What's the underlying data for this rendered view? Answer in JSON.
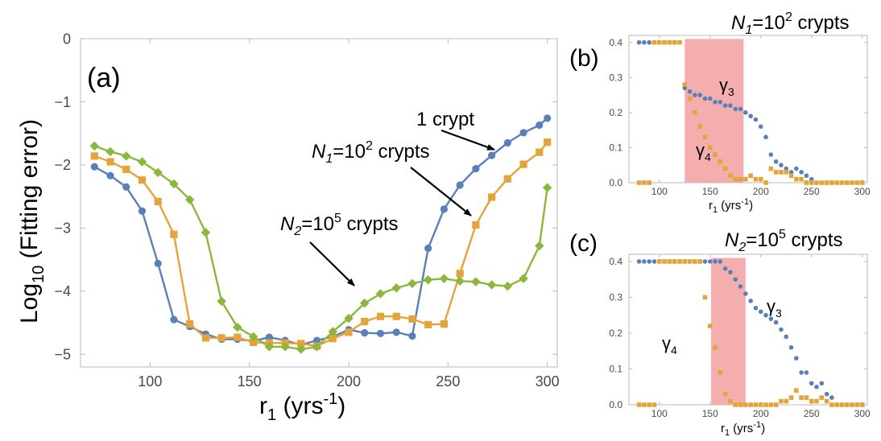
{
  "colors": {
    "blue": "#5b7fba",
    "orange": "#e4a43a",
    "green": "#8cb73f",
    "shade": "#f4aaaa",
    "frame": "#b8b8b8"
  },
  "chart_data": [
    {
      "id": "a",
      "panel_label": "(a)",
      "type": "line",
      "xlabel_main": "r",
      "xlabel_sub": "1",
      "xlabel_rest": " (yrs",
      "xlabel_sup": "-1",
      "xlabel_close": ")",
      "ylabel_pre": "Log",
      "ylabel_sub": "10",
      "ylabel_post": " (Fitting error)",
      "xlim": [
        65,
        305
      ],
      "ylim": [
        -5.2,
        0
      ],
      "xticks": [
        100,
        150,
        200,
        250,
        300
      ],
      "yticks": [
        0,
        -1,
        -2,
        -3,
        -4,
        -5
      ],
      "ytick_labels": [
        "0",
        "−1",
        "−2",
        "−3",
        "−4",
        "−5"
      ],
      "series": [
        {
          "key": "blue",
          "marker": "circle",
          "x": [
            72,
            80,
            88,
            96,
            104,
            112,
            120,
            128,
            136,
            144,
            152,
            160,
            168,
            176,
            184,
            192,
            200,
            208,
            216,
            224,
            232,
            240,
            248,
            256,
            264,
            272,
            280,
            288,
            296,
            300
          ],
          "y": [
            -2.03,
            -2.17,
            -2.35,
            -2.73,
            -3.56,
            -4.45,
            -4.56,
            -4.68,
            -4.76,
            -4.76,
            -4.79,
            -4.73,
            -4.78,
            -4.85,
            -4.78,
            -4.72,
            -4.61,
            -4.66,
            -4.67,
            -4.65,
            -4.71,
            -3.32,
            -2.7,
            -2.32,
            -2.06,
            -1.85,
            -1.65,
            -1.49,
            -1.37,
            -1.26
          ]
        },
        {
          "key": "orange",
          "marker": "square",
          "x": [
            72,
            80,
            88,
            96,
            104,
            112,
            120,
            128,
            136,
            144,
            152,
            160,
            168,
            176,
            184,
            192,
            200,
            208,
            216,
            224,
            232,
            240,
            248,
            256,
            264,
            272,
            280,
            288,
            296,
            300
          ],
          "y": [
            -1.86,
            -1.95,
            -2.07,
            -2.24,
            -2.58,
            -3.1,
            -4.52,
            -4.74,
            -4.74,
            -4.73,
            -4.81,
            -4.82,
            -4.82,
            -4.83,
            -4.87,
            -4.75,
            -4.65,
            -4.48,
            -4.4,
            -4.4,
            -4.44,
            -4.53,
            -4.52,
            -3.72,
            -2.95,
            -2.51,
            -2.22,
            -1.99,
            -1.8,
            -1.64
          ]
        },
        {
          "key": "green",
          "marker": "diamond",
          "x": [
            72,
            80,
            88,
            96,
            104,
            112,
            120,
            128,
            136,
            144,
            152,
            160,
            168,
            176,
            184,
            192,
            200,
            208,
            216,
            224,
            232,
            240,
            248,
            256,
            264,
            272,
            280,
            288,
            296,
            300
          ],
          "y": [
            -1.7,
            -1.79,
            -1.86,
            -1.95,
            -2.12,
            -2.3,
            -2.55,
            -3.07,
            -4.16,
            -4.57,
            -4.72,
            -4.88,
            -4.88,
            -4.92,
            -4.88,
            -4.64,
            -4.43,
            -4.19,
            -4.04,
            -3.95,
            -3.88,
            -3.82,
            -3.8,
            -3.84,
            -3.85,
            -3.9,
            -3.92,
            -3.8,
            -3.28,
            -2.36
          ]
        }
      ],
      "annotations": [
        {
          "kind": "plain",
          "text": "1 crypt"
        },
        {
          "kind": "n",
          "base": "N",
          "sub": "1",
          "mid": "=10",
          "sup": "2",
          "rest": " crypts"
        },
        {
          "kind": "n",
          "base": "N",
          "sub": "2",
          "mid": "=10",
          "sup": "5",
          "rest": " crypts"
        }
      ]
    },
    {
      "id": "b",
      "panel_label": "(b)",
      "title": {
        "base": "N",
        "sub": "1",
        "mid": "=10",
        "sup": "2",
        "rest": " crypts"
      },
      "type": "scatter",
      "xlabel_main": "r",
      "xlabel_sub": "1",
      "xlabel_rest": " (yrs",
      "xlabel_sup": "-1",
      "xlabel_close": ")",
      "xlim": [
        70,
        305
      ],
      "ylim": [
        0,
        0.42
      ],
      "xticks": [
        100,
        150,
        200,
        250,
        300
      ],
      "yticks": [
        0,
        0.1,
        0.2,
        0.3,
        0.4
      ],
      "ytick_labels": [
        "0.0",
        "0.1",
        "0.2",
        "0.3",
        "0.4"
      ],
      "shade_range": [
        125,
        183
      ],
      "series": [
        {
          "key": "blue",
          "marker": "circle",
          "name": "γ3",
          "x": [
            80,
            85,
            90,
            95,
            100,
            105,
            110,
            115,
            120,
            125,
            130,
            135,
            140,
            145,
            150,
            155,
            160,
            165,
            170,
            175,
            180,
            185,
            190,
            195,
            200,
            205,
            210,
            215,
            220,
            225,
            230,
            235,
            240,
            245,
            250
          ],
          "y": [
            0.4,
            0.4,
            0.4,
            0.4,
            0.4,
            0.4,
            0.4,
            0.4,
            0.4,
            0.27,
            0.26,
            0.25,
            0.25,
            0.24,
            0.24,
            0.23,
            0.23,
            0.22,
            0.22,
            0.21,
            0.21,
            0.2,
            0.19,
            0.18,
            0.16,
            0.13,
            0.08,
            0.06,
            0.05,
            0.04,
            0.03,
            0.04,
            0.03,
            0.02,
            0.01
          ]
        },
        {
          "key": "orange",
          "marker": "square",
          "name": "γ4",
          "x": [
            80,
            85,
            90,
            95,
            100,
            105,
            110,
            115,
            120,
            125,
            130,
            135,
            140,
            145,
            150,
            155,
            160,
            165,
            170,
            175,
            180,
            185,
            190,
            195,
            200,
            205,
            210,
            215,
            220,
            225,
            230,
            235,
            240,
            245,
            250,
            255,
            260,
            265,
            270,
            275,
            280,
            285,
            290,
            295,
            300
          ],
          "y": [
            0,
            0,
            0,
            0.4,
            0.4,
            0.4,
            0.4,
            0.4,
            0.4,
            0.28,
            0.24,
            0.2,
            0.16,
            0.13,
            0.1,
            0.08,
            0.06,
            0.04,
            0.02,
            0.01,
            0.01,
            0.01,
            0.02,
            0.01,
            0.01,
            0,
            0.04,
            0.03,
            0.03,
            0.03,
            0.02,
            0.01,
            0.01,
            0,
            0,
            0,
            0,
            0,
            0,
            0,
            0,
            0,
            0,
            0,
            0
          ]
        }
      ],
      "labels": [
        {
          "base": "γ",
          "sub": "3"
        },
        {
          "base": "γ",
          "sub": "4"
        }
      ]
    },
    {
      "id": "c",
      "panel_label": "(c)",
      "title": {
        "base": "N",
        "sub": "2",
        "mid": "=10",
        "sup": "5",
        "rest": " crypts"
      },
      "type": "scatter",
      "xlabel_main": "r",
      "xlabel_sub": "1",
      "xlabel_rest": " (yrs",
      "xlabel_sup": "-1",
      "xlabel_close": ")",
      "xlim": [
        70,
        305
      ],
      "ylim": [
        0,
        0.42
      ],
      "xticks": [
        100,
        150,
        200,
        250,
        300
      ],
      "yticks": [
        0,
        0.1,
        0.2,
        0.3,
        0.4
      ],
      "ytick_labels": [
        "0.0",
        "0.1",
        "0.2",
        "0.3",
        "0.4"
      ],
      "shade_range": [
        151,
        185
      ],
      "series": [
        {
          "key": "blue",
          "marker": "circle",
          "name": "γ3",
          "x": [
            80,
            85,
            90,
            95,
            100,
            105,
            110,
            115,
            120,
            125,
            130,
            135,
            140,
            145,
            150,
            155,
            160,
            165,
            170,
            175,
            180,
            185,
            190,
            195,
            200,
            205,
            210,
            215,
            220,
            225,
            230,
            235,
            240,
            245,
            250,
            255,
            260,
            265,
            270,
            275,
            280,
            285,
            290,
            295,
            300
          ],
          "y": [
            0.4,
            0.4,
            0.4,
            0.4,
            0.4,
            0.4,
            0.4,
            0.4,
            0.4,
            0.4,
            0.4,
            0.4,
            0.4,
            0.4,
            0.4,
            0.4,
            0.4,
            0.38,
            0.37,
            0.35,
            0.33,
            0.31,
            0.29,
            0.27,
            0.26,
            0.25,
            0.24,
            0.23,
            0.21,
            0.19,
            0.16,
            0.13,
            0.09,
            0.09,
            0.06,
            0.05,
            0.06,
            0.03,
            0.02,
            0,
            0,
            0,
            0,
            0,
            0
          ]
        },
        {
          "key": "orange",
          "marker": "square",
          "name": "γ4",
          "x": [
            80,
            85,
            90,
            95,
            100,
            105,
            110,
            115,
            120,
            125,
            130,
            135,
            140,
            145,
            150,
            155,
            160,
            165,
            170,
            175,
            180,
            185,
            190,
            195,
            200,
            205,
            210,
            215,
            220,
            225,
            230,
            235,
            240,
            245,
            250,
            255,
            260,
            265,
            270,
            275,
            280,
            285,
            290,
            295,
            300
          ],
          "y": [
            0,
            0,
            0,
            0,
            0.4,
            0.4,
            0.4,
            0.4,
            0.4,
            0.4,
            0.4,
            0.4,
            0.4,
            0.3,
            0.22,
            0.16,
            0.09,
            0.03,
            0.01,
            0,
            0,
            0,
            0,
            0,
            0,
            0,
            0,
            0,
            0.01,
            0.01,
            0.02,
            0.04,
            0.02,
            0.02,
            0.01,
            0.01,
            0.02,
            0.01,
            0,
            0,
            0,
            0,
            0,
            0,
            0
          ]
        }
      ],
      "labels": [
        {
          "base": "γ",
          "sub": "3"
        },
        {
          "base": "γ",
          "sub": "4"
        }
      ]
    }
  ]
}
